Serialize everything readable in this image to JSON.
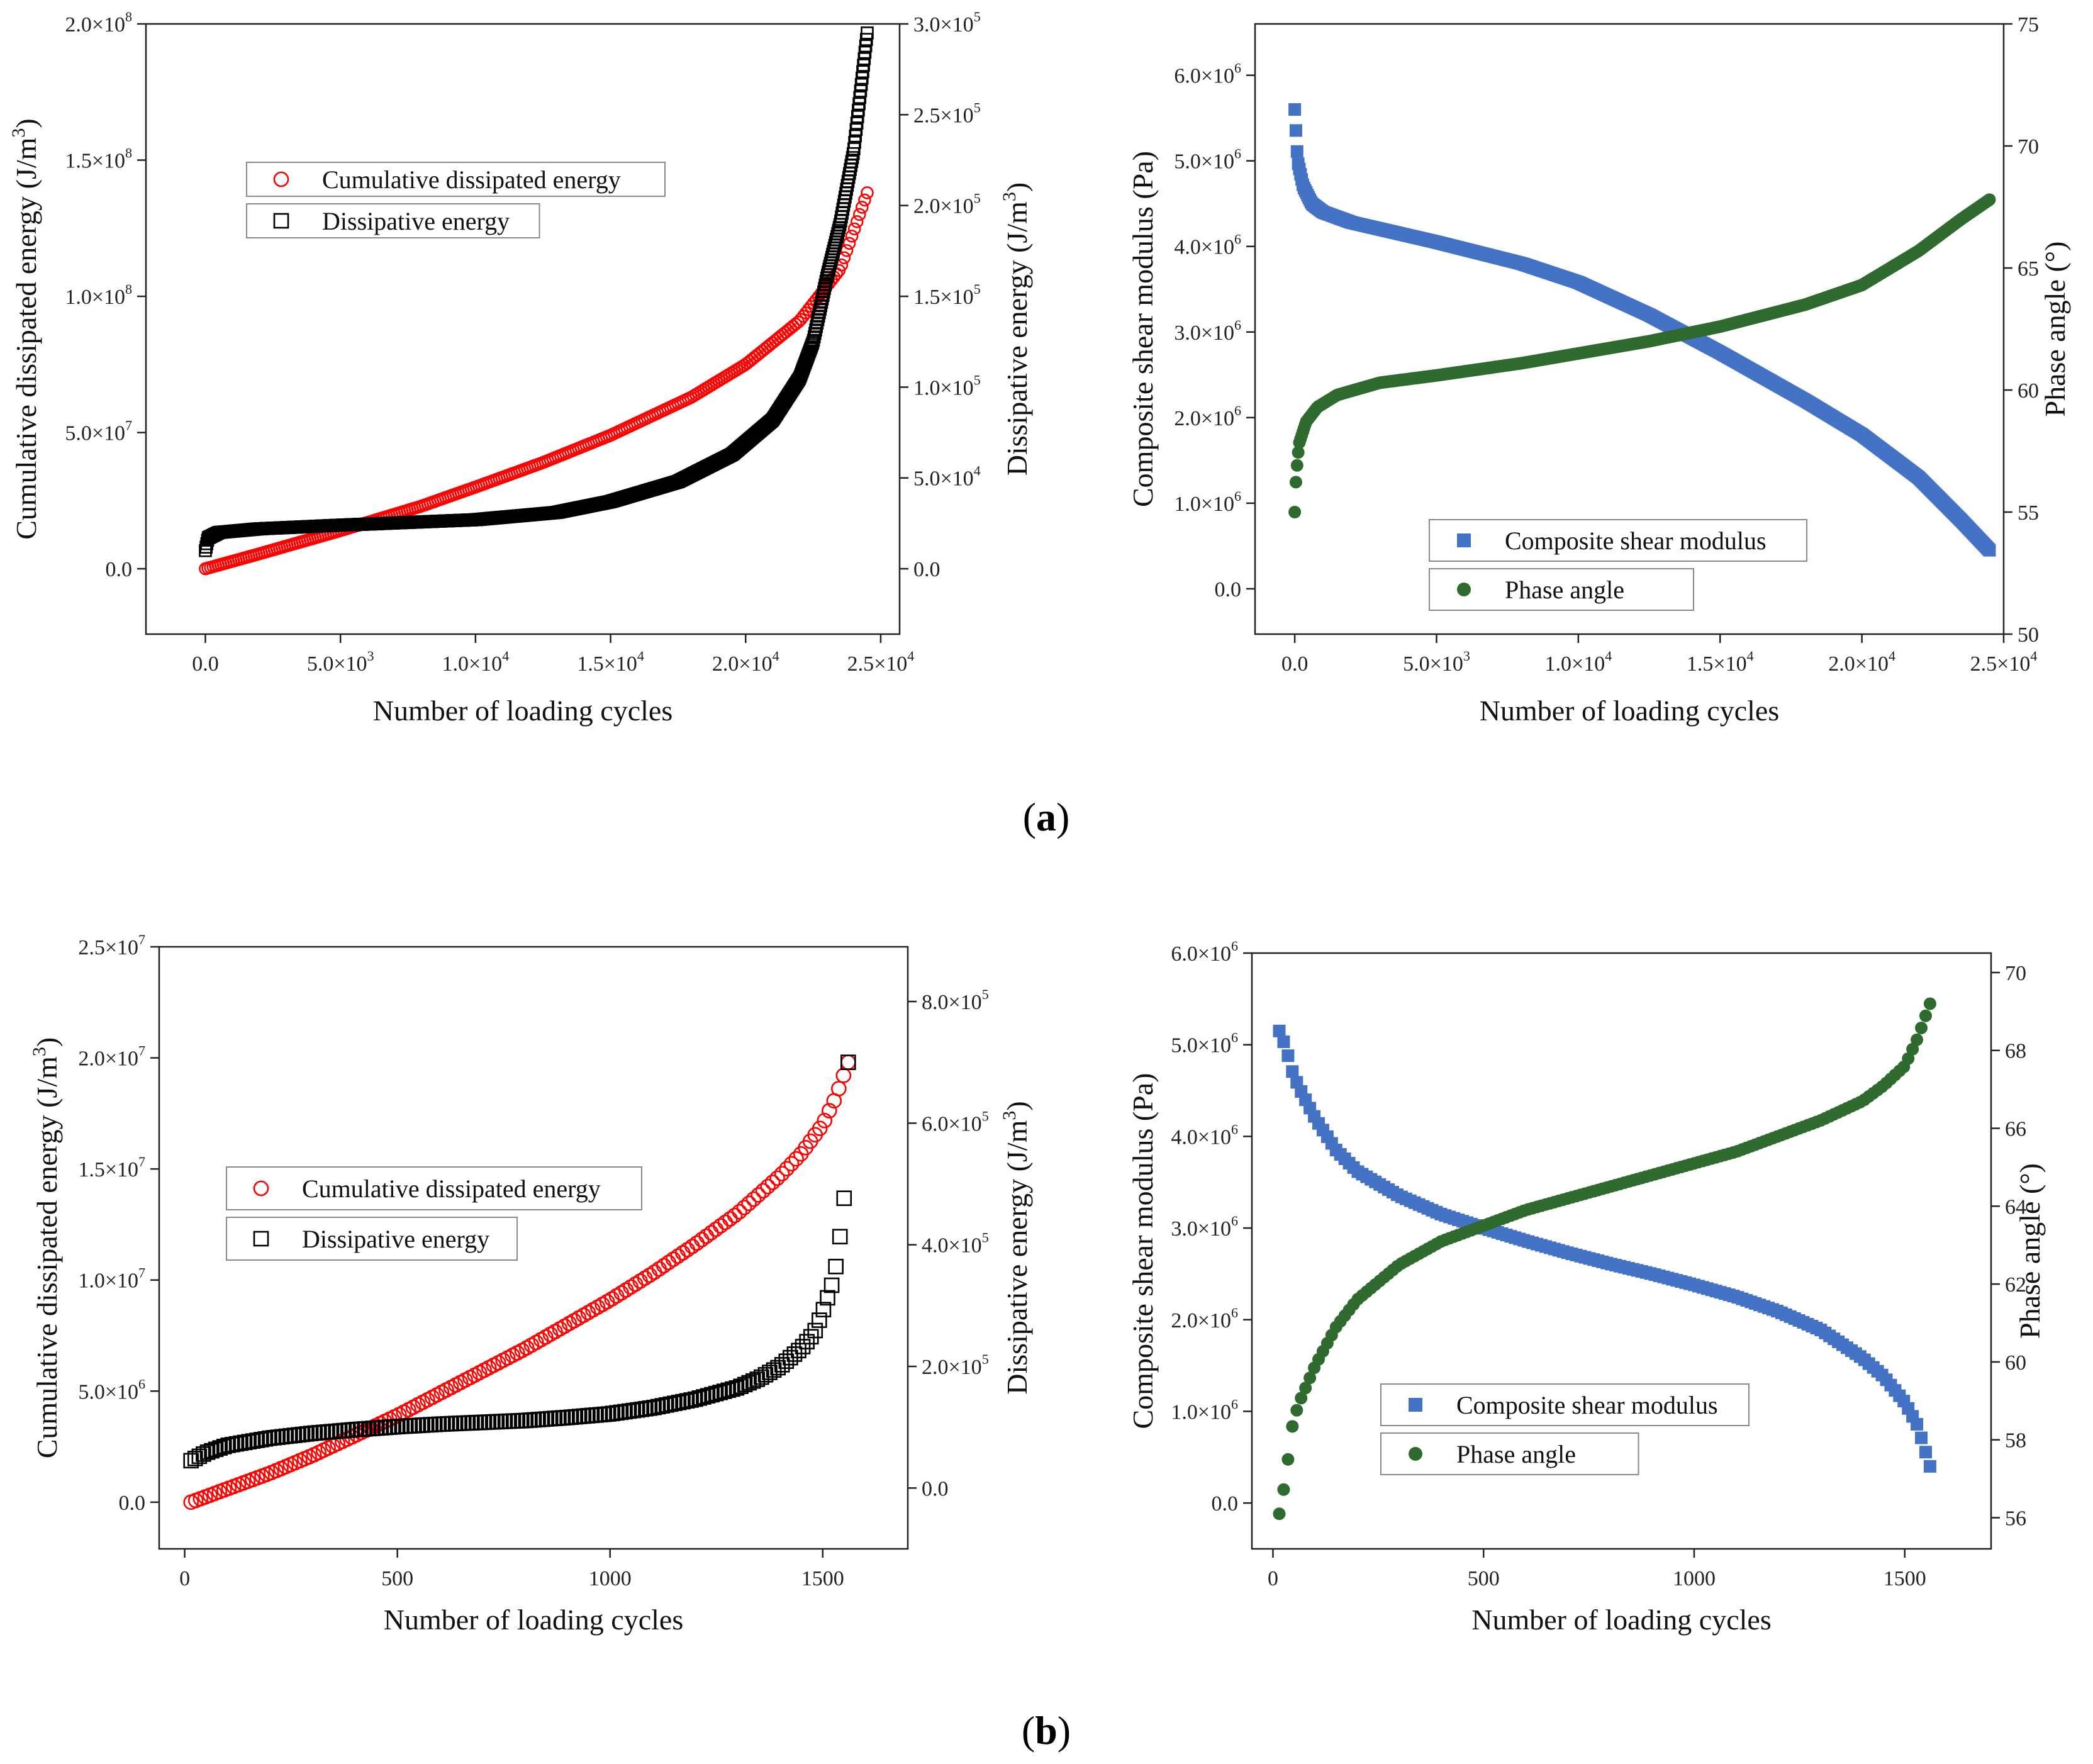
{
  "panel_labels": [
    "a",
    "b"
  ],
  "chart_data": [
    {
      "id": "a-left",
      "type": "scatter",
      "xlabel": "Number of loading cycles",
      "ylabel_left": "Cumulative dissipated energy (J/m³)",
      "ylabel_right": "Dissipative energy (J/m³)",
      "x_ticks": [
        {
          "v": 0,
          "m": "0.0",
          "e": ""
        },
        {
          "v": 5000,
          "m": "5.0×10",
          "e": "3"
        },
        {
          "v": 10000,
          "m": "1.0×10",
          "e": "4"
        },
        {
          "v": 15000,
          "m": "1.5×10",
          "e": "4"
        },
        {
          "v": 20000,
          "m": "2.0×10",
          "e": "4"
        },
        {
          "v": 25000,
          "m": "2.5×10",
          "e": "4"
        }
      ],
      "y_left_ticks": [
        {
          "v": 0,
          "m": "0.0",
          "e": ""
        },
        {
          "v": 50000000,
          "m": "5.0×10",
          "e": "7"
        },
        {
          "v": 100000000,
          "m": "1.0×10",
          "e": "8"
        },
        {
          "v": 150000000,
          "m": "1.5×10",
          "e": "8"
        },
        {
          "v": 200000000,
          "m": "2.0×10",
          "e": "8"
        }
      ],
      "y_right_ticks": [
        {
          "v": 0,
          "m": "0.0",
          "e": ""
        },
        {
          "v": 50000,
          "m": "5.0×10",
          "e": "4"
        },
        {
          "v": 100000,
          "m": "1.0×10",
          "e": "5"
        },
        {
          "v": 150000,
          "m": "1.5×10",
          "e": "5"
        },
        {
          "v": 200000,
          "m": "2.0×10",
          "e": "5"
        },
        {
          "v": 250000,
          "m": "2.5×10",
          "e": "5"
        },
        {
          "v": 300000,
          "m": "3.0×10",
          "e": "5"
        }
      ],
      "legend": [
        "Cumulative dissipated energy",
        "Dissipative energy"
      ],
      "series": [
        {
          "name": "Cumulative dissipated energy",
          "axis": "left",
          "marker": "open-circle",
          "color": "#ff0000",
          "x": [
            0,
            2000,
            5000,
            8000,
            10000,
            12500,
            15000,
            18000,
            20000,
            22000,
            23500,
            24500
          ],
          "y": [
            0,
            5500000,
            14000000,
            23000000,
            30000000,
            39000000,
            49000000,
            63000000,
            75000000,
            91000000,
            110000000,
            138000000
          ]
        },
        {
          "name": "Dissipative energy",
          "axis": "right",
          "marker": "open-square",
          "color": "#000000",
          "x": [
            0,
            100,
            500,
            2000,
            5000,
            10000,
            13000,
            15000,
            17500,
            19500,
            21000,
            22000,
            22500,
            23000,
            23500,
            24000,
            24500
          ],
          "y": [
            10000,
            17000,
            20000,
            22000,
            24000,
            27000,
            31000,
            37000,
            48000,
            63000,
            82000,
            105000,
            125000,
            160000,
            190000,
            230000,
            295000
          ]
        }
      ]
    },
    {
      "id": "a-right",
      "type": "scatter",
      "xlabel": "Number of loading cycles",
      "ylabel_left": "Composite shear modulus (Pa)",
      "ylabel_right": "Phase angle (°)",
      "x_ticks": [
        {
          "v": 0,
          "m": "0.0",
          "e": ""
        },
        {
          "v": 5000,
          "m": "5.0×10",
          "e": "3"
        },
        {
          "v": 10000,
          "m": "1.0×10",
          "e": "4"
        },
        {
          "v": 15000,
          "m": "1.5×10",
          "e": "4"
        },
        {
          "v": 20000,
          "m": "2.0×10",
          "e": "4"
        },
        {
          "v": 25000,
          "m": "2.5×10",
          "e": "4"
        }
      ],
      "y_left_ticks": [
        {
          "v": 0,
          "m": "0.0",
          "e": ""
        },
        {
          "v": 1000000,
          "m": "1.0×10",
          "e": "6"
        },
        {
          "v": 2000000,
          "m": "2.0×10",
          "e": "6"
        },
        {
          "v": 3000000,
          "m": "3.0×10",
          "e": "6"
        },
        {
          "v": 4000000,
          "m": "4.0×10",
          "e": "6"
        },
        {
          "v": 5000000,
          "m": "5.0×10",
          "e": "6"
        },
        {
          "v": 6000000,
          "m": "6.0×10",
          "e": "6"
        }
      ],
      "y_right_ticks": [
        {
          "v": 50,
          "m": "50",
          "e": ""
        },
        {
          "v": 55,
          "m": "55",
          "e": ""
        },
        {
          "v": 60,
          "m": "60",
          "e": ""
        },
        {
          "v": 65,
          "m": "65",
          "e": ""
        },
        {
          "v": 70,
          "m": "70",
          "e": ""
        },
        {
          "v": 75,
          "m": "75",
          "e": ""
        }
      ],
      "legend": [
        "Composite shear modulus",
        "Phase angle"
      ],
      "series": [
        {
          "name": "Composite shear modulus",
          "axis": "left",
          "marker": "filled-square",
          "color": "#4472c4",
          "x": [
            0,
            100,
            300,
            600,
            1000,
            2000,
            5000,
            8000,
            10000,
            12500,
            15000,
            18000,
            20000,
            22000,
            23500,
            24500
          ],
          "y": [
            5600000,
            5000000,
            4700000,
            4500000,
            4400000,
            4280000,
            4050000,
            3800000,
            3580000,
            3200000,
            2760000,
            2200000,
            1800000,
            1300000,
            800000,
            450000
          ]
        },
        {
          "name": "Phase angle",
          "axis": "right",
          "marker": "filled-circle",
          "color": "#2f6b2f",
          "x": [
            0,
            50,
            150,
            400,
            800,
            1500,
            3000,
            5000,
            8000,
            10000,
            12500,
            15000,
            18000,
            20000,
            22000,
            23500,
            24500
          ],
          "y": [
            55,
            56.5,
            57.8,
            58.7,
            59.3,
            59.8,
            60.3,
            60.6,
            61.1,
            61.5,
            62.0,
            62.6,
            63.5,
            64.3,
            65.7,
            67.0,
            67.8
          ]
        }
      ]
    },
    {
      "id": "b-left",
      "type": "scatter",
      "xlabel": "Number of loading cycles",
      "ylabel_left": "Cumulative dissipated energy (J/m³)",
      "ylabel_right": "Dissipative energy (J/m³)",
      "x_ticks": [
        {
          "v": 0,
          "m": "0",
          "e": ""
        },
        {
          "v": 500,
          "m": "500",
          "e": ""
        },
        {
          "v": 1000,
          "m": "1000",
          "e": ""
        },
        {
          "v": 1500,
          "m": "1500",
          "e": ""
        }
      ],
      "y_left_ticks": [
        {
          "v": 0,
          "m": "0.0",
          "e": ""
        },
        {
          "v": 5000000,
          "m": "5.0×10",
          "e": "6"
        },
        {
          "v": 10000000,
          "m": "1.0×10",
          "e": "7"
        },
        {
          "v": 15000000,
          "m": "1.5×10",
          "e": "7"
        },
        {
          "v": 20000000,
          "m": "2.0×10",
          "e": "7"
        },
        {
          "v": 25000000,
          "m": "2.5×10",
          "e": "7"
        }
      ],
      "y_right_ticks": [
        {
          "v": 0,
          "m": "0.0",
          "e": ""
        },
        {
          "v": 200000,
          "m": "2.0×10",
          "e": "5"
        },
        {
          "v": 400000,
          "m": "4.0×10",
          "e": "5"
        },
        {
          "v": 600000,
          "m": "6.0×10",
          "e": "5"
        },
        {
          "v": 800000,
          "m": "8.0×10",
          "e": "5"
        }
      ],
      "legend": [
        "Cumulative dissipated energy",
        "Dissipative energy"
      ],
      "series": [
        {
          "name": "Cumulative dissipated energy",
          "axis": "left",
          "marker": "open-circle",
          "color": "#ff0000",
          "x": [
            15,
            100,
            200,
            300,
            400,
            500,
            600,
            700,
            800,
            900,
            1000,
            1100,
            1200,
            1300,
            1400,
            1450,
            1500,
            1530,
            1560
          ],
          "y": [
            0,
            600000,
            1300000,
            2100000,
            3000000,
            3900000,
            4900000,
            5900000,
            6900000,
            8000000,
            9100000,
            10300000,
            11600000,
            13000000,
            14700000,
            15700000,
            17000000,
            18200000,
            19800000
          ]
        },
        {
          "name": "Dissipative energy",
          "axis": "right",
          "marker": "open-square",
          "color": "#000000",
          "x": [
            15,
            50,
            100,
            200,
            300,
            400,
            500,
            600,
            700,
            800,
            900,
            1000,
            1100,
            1200,
            1300,
            1350,
            1400,
            1450,
            1480,
            1500,
            1520,
            1530,
            1540,
            1550,
            1560
          ],
          "y": [
            45000,
            58000,
            70000,
            82000,
            90000,
            96000,
            101000,
            105000,
            108000,
            111000,
            116000,
            122000,
            132000,
            146000,
            165000,
            180000,
            200000,
            230000,
            255000,
            290000,
            330000,
            360000,
            410000,
            470000,
            700000
          ]
        }
      ]
    },
    {
      "id": "b-right",
      "type": "scatter",
      "xlabel": "Number of loading cycles",
      "ylabel_left": "Composite shear modulus (Pa)",
      "ylabel_right": "Phase angle (°)",
      "x_ticks": [
        {
          "v": 0,
          "m": "0",
          "e": ""
        },
        {
          "v": 500,
          "m": "500",
          "e": ""
        },
        {
          "v": 1000,
          "m": "1000",
          "e": ""
        },
        {
          "v": 1500,
          "m": "1500",
          "e": ""
        }
      ],
      "y_left_ticks": [
        {
          "v": 0,
          "m": "0.0",
          "e": ""
        },
        {
          "v": 1000000,
          "m": "1.0×10",
          "e": "6"
        },
        {
          "v": 2000000,
          "m": "2.0×10",
          "e": "6"
        },
        {
          "v": 3000000,
          "m": "3.0×10",
          "e": "6"
        },
        {
          "v": 4000000,
          "m": "4.0×10",
          "e": "6"
        },
        {
          "v": 5000000,
          "m": "5.0×10",
          "e": "6"
        },
        {
          "v": 6000000,
          "m": "6.0×10",
          "e": "6"
        }
      ],
      "y_right_ticks": [
        {
          "v": 56,
          "m": "56",
          "e": ""
        },
        {
          "v": 58,
          "m": "58",
          "e": ""
        },
        {
          "v": 60,
          "m": "60",
          "e": ""
        },
        {
          "v": 62,
          "m": "62",
          "e": ""
        },
        {
          "v": 64,
          "m": "64",
          "e": ""
        },
        {
          "v": 66,
          "m": "66",
          "e": ""
        },
        {
          "v": 68,
          "m": "68",
          "e": ""
        },
        {
          "v": 70,
          "m": "70",
          "e": ""
        }
      ],
      "legend": [
        "Composite shear modulus",
        "Phase angle"
      ],
      "series": [
        {
          "name": "Composite shear modulus",
          "axis": "left",
          "marker": "filled-square",
          "color": "#4472c4",
          "x": [
            15,
            30,
            45,
            60,
            100,
            150,
            200,
            300,
            400,
            500,
            600,
            700,
            800,
            900,
            1000,
            1100,
            1200,
            1300,
            1400,
            1450,
            1500,
            1530,
            1560
          ],
          "y": [
            5150000,
            4980000,
            4720000,
            4550000,
            4200000,
            3850000,
            3620000,
            3350000,
            3150000,
            3000000,
            2860000,
            2730000,
            2610000,
            2500000,
            2380000,
            2250000,
            2090000,
            1890000,
            1580000,
            1380000,
            1100000,
            850000,
            400000
          ]
        },
        {
          "name": "Phase angle",
          "axis": "right",
          "marker": "filled-circle",
          "color": "#2f6b2f",
          "x": [
            15,
            30,
            45,
            60,
            100,
            150,
            200,
            300,
            400,
            500,
            600,
            700,
            800,
            900,
            1000,
            1100,
            1200,
            1300,
            1400,
            1450,
            1500,
            1530,
            1560
          ],
          "y": [
            56.1,
            57.0,
            58.3,
            58.9,
            59.9,
            60.9,
            61.6,
            62.5,
            63.1,
            63.5,
            63.9,
            64.2,
            64.5,
            64.8,
            65.1,
            65.4,
            65.8,
            66.2,
            66.7,
            67.1,
            67.6,
            68.3,
            69.2
          ]
        }
      ]
    }
  ]
}
